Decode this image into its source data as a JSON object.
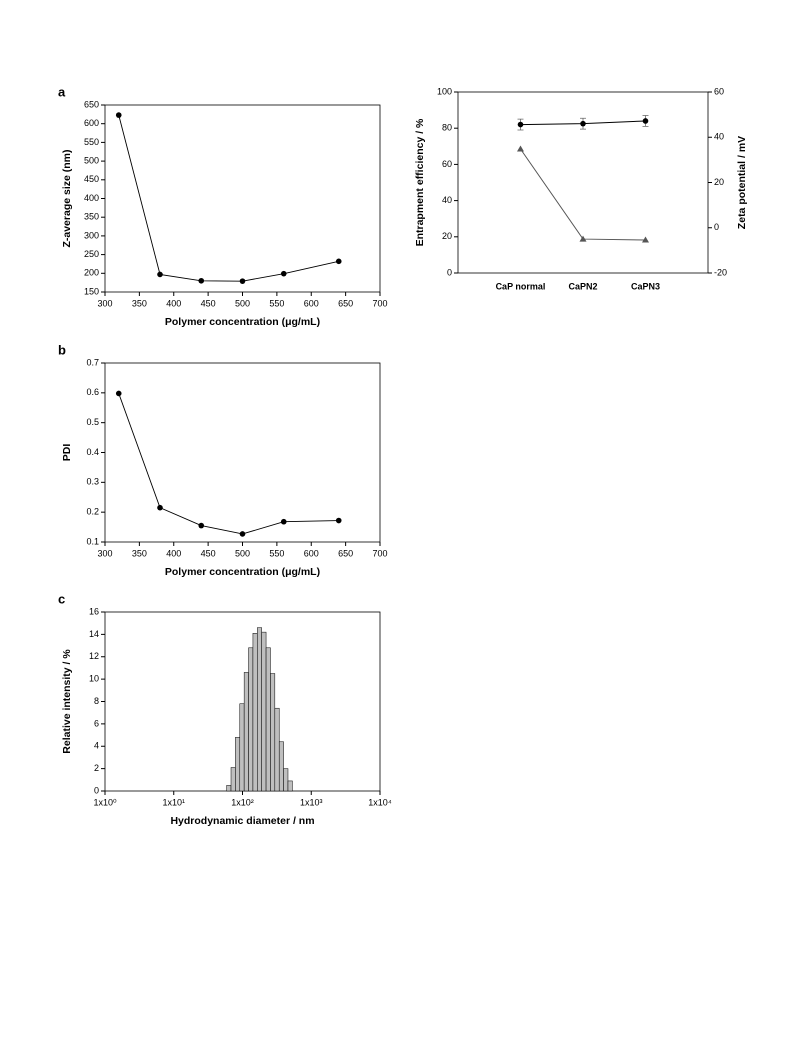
{
  "chart_data": [
    {
      "type": "line",
      "panel": "a",
      "x_label": "Polymer concentration (μg/mL)",
      "y_label": "Z-average size (nm)",
      "series": [
        {
          "color": "#000000",
          "marker": "circle",
          "x": [
            320,
            380,
            440,
            500,
            560,
            640
          ],
          "values": [
            623,
            197,
            180,
            179,
            199,
            232
          ]
        }
      ],
      "xlim": [
        300,
        700
      ],
      "xticks": [
        300,
        350,
        400,
        450,
        500,
        550,
        600,
        650,
        700
      ],
      "ylim": [
        150,
        650
      ],
      "yticks": [
        150,
        200,
        250,
        300,
        350,
        400,
        450,
        500,
        550,
        600,
        650
      ]
    },
    {
      "type": "dual_line",
      "y_label": "Entrapment efficiency / %",
      "y2_label": "Zeta potential / mV",
      "categories": [
        "CaP normal",
        "CaPN2",
        "CaPN3"
      ],
      "series": [
        {
          "color": "#000000",
          "marker": "circle",
          "values": [
            82,
            82.5,
            84
          ],
          "errors": [
            3,
            3,
            3
          ]
        },
        {
          "color": "#555555",
          "marker": "triangle",
          "axis": "y2",
          "values": [
            34.8,
            -5,
            -5.4
          ]
        }
      ],
      "ylim": [
        0,
        100
      ],
      "yticks": [
        0,
        20,
        40,
        60,
        80,
        100
      ],
      "y2lim": [
        -20,
        60
      ],
      "y2ticks": [
        -20,
        0,
        20,
        40,
        60
      ]
    },
    {
      "type": "line",
      "panel": "b",
      "x_label": "Polymer concentration (μg/mL)",
      "y_label": "PDI",
      "series": [
        {
          "color": "#000000",
          "marker": "circle",
          "x": [
            320,
            380,
            440,
            500,
            560,
            640
          ],
          "values": [
            0.598,
            0.215,
            0.155,
            0.127,
            0.168,
            0.172
          ]
        }
      ],
      "xlim": [
        300,
        700
      ],
      "xticks": [
        300,
        350,
        400,
        450,
        500,
        550,
        600,
        650,
        700
      ],
      "ylim": [
        0.1,
        0.7
      ],
      "yticks": [
        0.1,
        0.2,
        0.3,
        0.4,
        0.5,
        0.6,
        0.7
      ]
    },
    {
      "type": "histogram",
      "panel": "c",
      "x_label": "Hydrodynamic diameter / nm",
      "y_label": "Relative intensity / %",
      "color": "#bfbfbf",
      "x_log": true,
      "bins": [
        58.77,
        68.06,
        78.82,
        91.28,
        105.7,
        122.4,
        141.8,
        164.2,
        190.1,
        220.2,
        255.0,
        295.3,
        342.0,
        396.1,
        458.7,
        531.2
      ],
      "values": [
        0.5,
        2.1,
        4.8,
        7.8,
        10.6,
        12.8,
        14.1,
        14.6,
        14.2,
        12.8,
        10.5,
        7.4,
        4.4,
        2.0,
        0.9
      ],
      "xlim": [
        1,
        10000
      ],
      "xticks": [
        {
          "value": 1,
          "label": "1x10⁰"
        },
        {
          "value": 10,
          "label": "1x10¹"
        },
        {
          "value": 100,
          "label": "1x10²"
        },
        {
          "value": 1000,
          "label": "1x10³"
        },
        {
          "value": 10000,
          "label": "1x10⁴"
        }
      ],
      "ylim": [
        0,
        16
      ],
      "yticks": [
        0,
        2,
        4,
        6,
        8,
        10,
        12,
        14,
        16
      ]
    }
  ]
}
